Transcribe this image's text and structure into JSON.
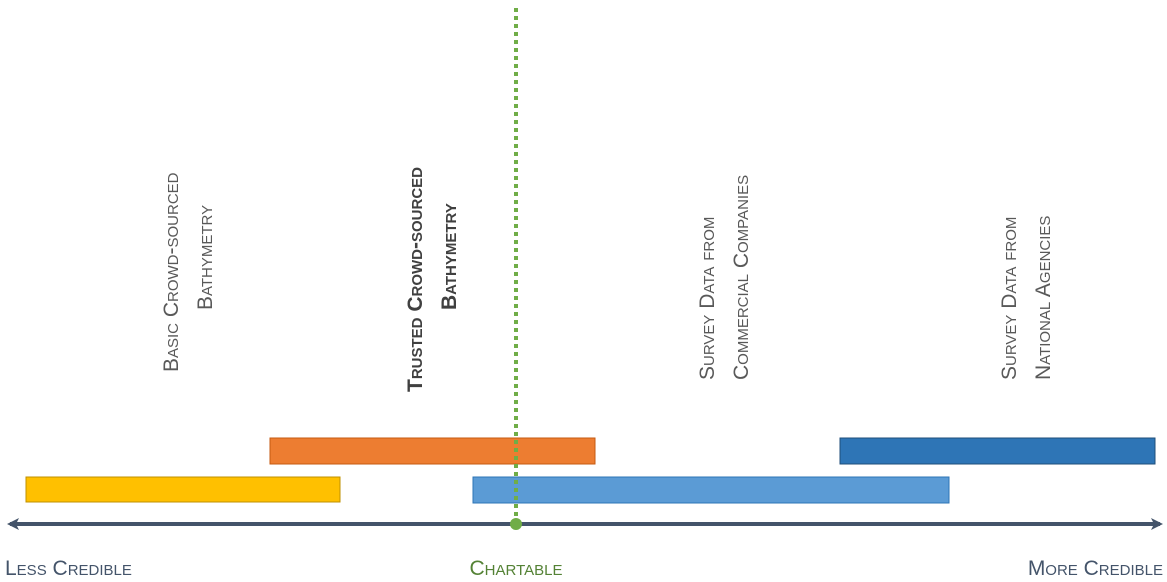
{
  "labels": {
    "basic": {
      "line1": "Basic Crowd-sourced",
      "line2": "Bathymetry"
    },
    "trusted": {
      "line1": "Trusted Crowd-sourced",
      "line2": "Bathymetry"
    },
    "commercial": {
      "line1": "Survey Data from",
      "line2": "Commercial Companies"
    },
    "national": {
      "line1": "Survey Data from",
      "line2": "National Agencies"
    }
  },
  "axis": {
    "left_label": "Less Credible",
    "center_label": "Chartable",
    "right_label": "More Credible"
  },
  "colors": {
    "basic": "#ffc000",
    "trusted": "#ed7d31",
    "commercial": "#5b9bd5",
    "national": "#2e75b6",
    "axis": "#44546a",
    "chartable": "#70ad47"
  }
}
